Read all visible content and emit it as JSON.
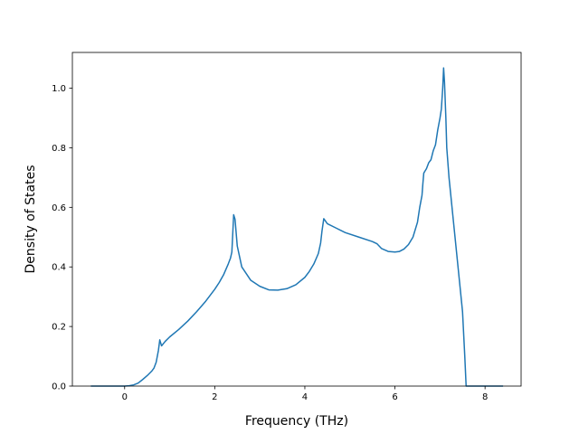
{
  "chart_data": {
    "type": "line",
    "title": "",
    "xlabel": "Frequency (THz)",
    "ylabel": "Density of States",
    "xlim": [
      -1.16,
      8.8
    ],
    "ylim": [
      0.0,
      1.12
    ],
    "grid": false,
    "legend": "none",
    "xticks": [
      0,
      2,
      4,
      6,
      8
    ],
    "xtick_labels": [
      "0",
      "2",
      "4",
      "6",
      "8"
    ],
    "yticks": [
      0.0,
      0.2,
      0.4,
      0.6,
      0.8,
      1.0
    ],
    "ytick_labels": [
      "0.0",
      "0.2",
      "0.4",
      "0.6",
      "0.8",
      "1.0"
    ],
    "series": [
      {
        "color": "#1f77b4",
        "x": [
          -0.75,
          -0.2,
          0.0,
          0.1,
          0.2,
          0.3,
          0.4,
          0.5,
          0.6,
          0.65,
          0.7,
          0.75,
          0.78,
          0.82,
          0.9,
          1.0,
          1.2,
          1.4,
          1.6,
          1.8,
          2.0,
          2.1,
          2.2,
          2.3,
          2.35,
          2.38,
          2.42,
          2.45,
          2.5,
          2.6,
          2.8,
          3.0,
          3.2,
          3.4,
          3.6,
          3.8,
          4.0,
          4.1,
          4.2,
          4.3,
          4.35,
          4.38,
          4.42,
          4.5,
          4.7,
          4.9,
          5.2,
          5.5,
          5.6,
          5.7,
          5.85,
          6.0,
          6.1,
          6.2,
          6.3,
          6.4,
          6.5,
          6.55,
          6.6,
          6.62,
          6.64,
          6.66,
          6.7,
          6.75,
          6.8,
          6.85,
          6.9,
          6.95,
          7.0,
          7.03,
          7.06,
          7.08,
          7.1,
          7.13,
          7.15,
          7.2,
          7.3,
          7.4,
          7.5,
          7.55,
          7.58,
          7.62,
          7.7,
          8.0,
          8.4
        ],
        "y": [
          0.0,
          0.0,
          0.0,
          0.001,
          0.004,
          0.01,
          0.022,
          0.035,
          0.05,
          0.06,
          0.08,
          0.12,
          0.155,
          0.135,
          0.15,
          0.165,
          0.19,
          0.218,
          0.25,
          0.285,
          0.325,
          0.348,
          0.375,
          0.41,
          0.43,
          0.45,
          0.575,
          0.56,
          0.47,
          0.4,
          0.355,
          0.335,
          0.323,
          0.322,
          0.327,
          0.34,
          0.365,
          0.385,
          0.41,
          0.445,
          0.48,
          0.52,
          0.562,
          0.545,
          0.53,
          0.515,
          0.5,
          0.485,
          0.478,
          0.462,
          0.452,
          0.45,
          0.452,
          0.46,
          0.475,
          0.5,
          0.55,
          0.6,
          0.64,
          0.68,
          0.715,
          0.72,
          0.73,
          0.75,
          0.76,
          0.79,
          0.81,
          0.86,
          0.9,
          0.93,
          1.0,
          1.068,
          1.02,
          0.9,
          0.8,
          0.7,
          0.55,
          0.4,
          0.25,
          0.1,
          0.0,
          0.0,
          0.0,
          0.0,
          0.0
        ]
      }
    ]
  }
}
